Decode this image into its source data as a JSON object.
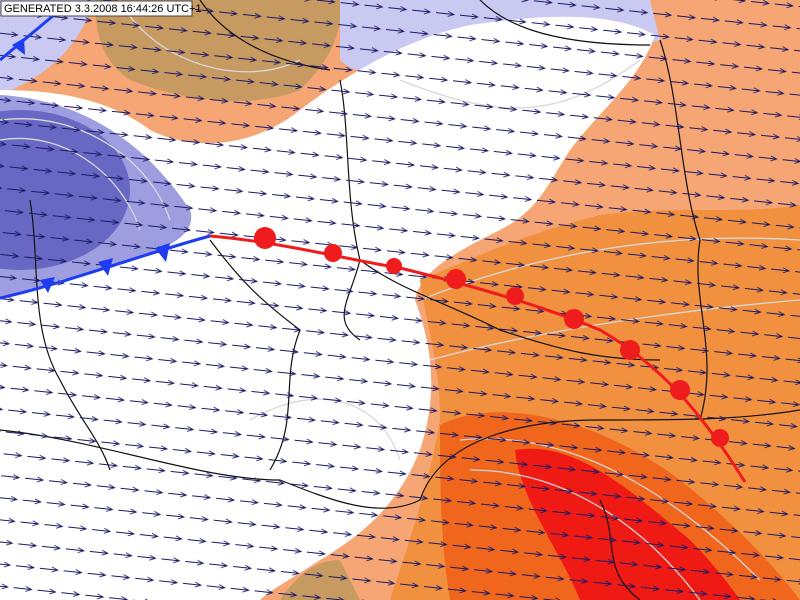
{
  "header": {
    "generated": "GENERATED 3.3.2008 16:44:26 UTC+1"
  }
}
